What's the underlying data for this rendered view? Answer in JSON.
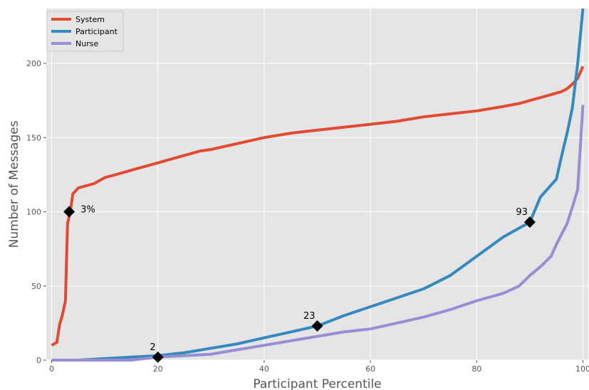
{
  "chart_data": {
    "type": "line",
    "title": "",
    "xlabel": "Participant Percentile",
    "ylabel": "Number of Messages",
    "xlim": [
      -1,
      101
    ],
    "ylim": [
      0,
      237
    ],
    "xticks": [
      0,
      20,
      40,
      60,
      80,
      100
    ],
    "yticks": [
      0,
      50,
      100,
      150,
      200
    ],
    "grid": true,
    "legend_position": "top-left",
    "background": "#e5e5e5",
    "series": [
      {
        "name": "System",
        "color": "#e24a33",
        "x": [
          0,
          1,
          1.5,
          2,
          2.6,
          3,
          3.5,
          4,
          5,
          6,
          7,
          8,
          9,
          10,
          12,
          14,
          16,
          18,
          20,
          22,
          24,
          26,
          28,
          30,
          35,
          40,
          45,
          50,
          55,
          60,
          65,
          70,
          75,
          80,
          85,
          88,
          90,
          92,
          94,
          95,
          96,
          97,
          98,
          99,
          100
        ],
        "y": [
          10,
          12,
          24,
          30,
          40,
          92,
          100,
          112,
          116,
          117,
          118,
          119,
          121,
          123,
          125,
          127,
          129,
          131,
          133,
          135,
          137,
          139,
          141,
          142,
          146,
          150,
          153,
          155,
          157,
          159,
          161,
          164,
          166,
          168,
          171,
          173,
          175,
          177,
          179,
          180,
          181,
          183,
          186,
          190,
          198
        ]
      },
      {
        "name": "Participant",
        "color": "#348abd",
        "x": [
          0,
          5,
          10,
          15,
          20,
          25,
          30,
          35,
          40,
          45,
          50,
          55,
          60,
          65,
          70,
          75,
          80,
          85,
          88,
          90,
          92,
          94,
          95,
          96,
          97,
          98,
          99,
          100
        ],
        "y": [
          0,
          0,
          1,
          2,
          3,
          5,
          8,
          11,
          15,
          19,
          23,
          30,
          36,
          42,
          48,
          57,
          70,
          83,
          89,
          93,
          110,
          118,
          122,
          138,
          153,
          170,
          200,
          237
        ]
      },
      {
        "name": "Nurse",
        "color": "#988ed5",
        "x": [
          0,
          10,
          15,
          20,
          25,
          30,
          35,
          40,
          45,
          50,
          55,
          60,
          65,
          70,
          75,
          80,
          85,
          88,
          90,
          92,
          94,
          95,
          96,
          97,
          98,
          99,
          100
        ],
        "y": [
          0,
          0,
          0,
          2,
          3,
          4,
          7,
          10,
          13,
          16,
          19,
          21,
          25,
          29,
          34,
          40,
          45,
          50,
          57,
          63,
          70,
          78,
          85,
          92,
          103,
          115,
          172
        ]
      }
    ],
    "annotations": [
      {
        "text": "3%",
        "x": 3.3,
        "y": 100,
        "position": "right"
      },
      {
        "text": "2",
        "x": 20,
        "y": 2,
        "position": "above-left"
      },
      {
        "text": "23",
        "x": 50,
        "y": 23,
        "position": "above-left"
      },
      {
        "text": "93",
        "x": 90,
        "y": 93,
        "position": "above-left"
      }
    ]
  }
}
